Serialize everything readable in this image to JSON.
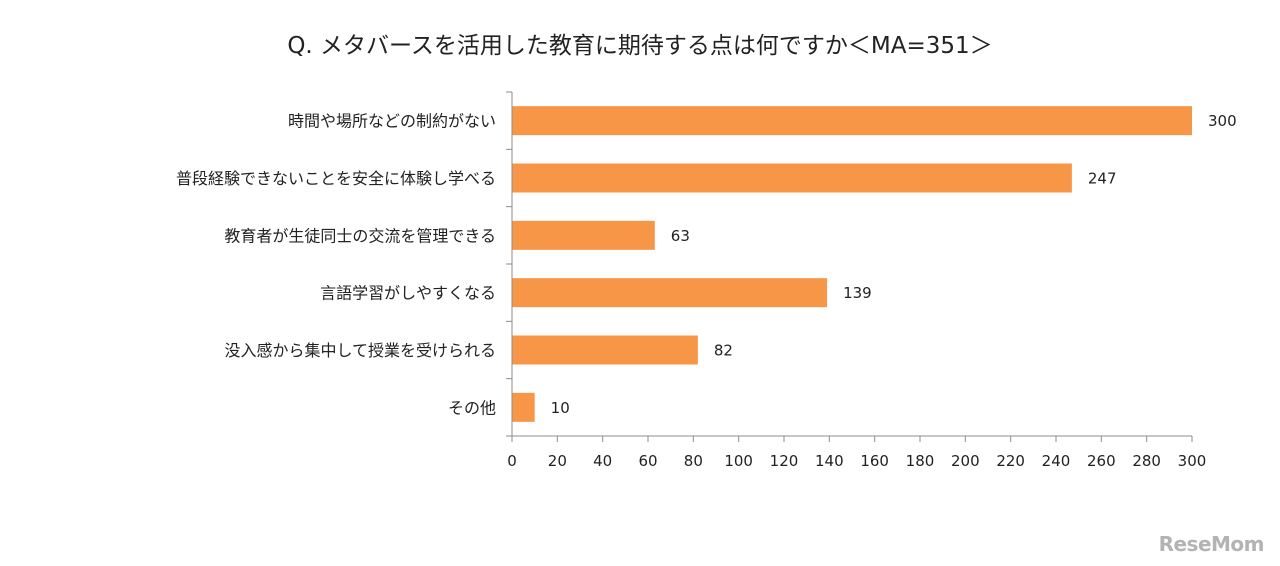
{
  "chart_data": {
    "type": "bar",
    "orientation": "horizontal",
    "title": "Q. メタバースを活用した教育に期待する点は何ですか＜MA=351＞",
    "categories": [
      "時間や場所などの制約がない",
      "普段経験できないことを安全に体験し学べる",
      "教育者が生徒同士の交流を管理できる",
      "言語学習がしやすくなる",
      "没入感から集中して授業を受けられる",
      "その他"
    ],
    "values": [
      300,
      247,
      63,
      139,
      82,
      10
    ],
    "xlim": [
      0,
      300
    ],
    "xticks": [
      0,
      20,
      40,
      60,
      80,
      100,
      120,
      140,
      160,
      180,
      200,
      220,
      240,
      260,
      280,
      300
    ],
    "grid": false,
    "legend": "none",
    "bar_color": "#F79646"
  },
  "watermark": "ReseMom"
}
